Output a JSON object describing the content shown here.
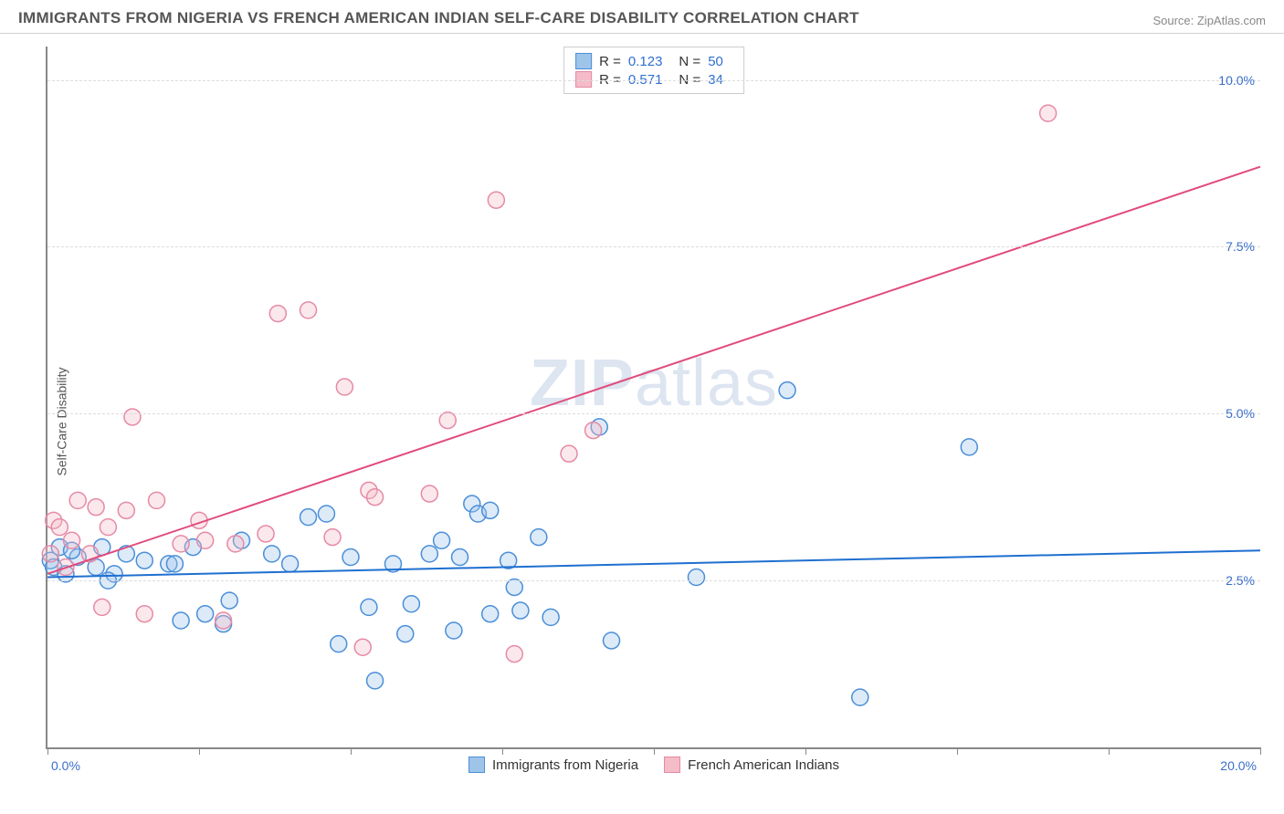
{
  "header": {
    "title": "IMMIGRANTS FROM NIGERIA VS FRENCH AMERICAN INDIAN SELF-CARE DISABILITY CORRELATION CHART",
    "source": "Source: ZipAtlas.com"
  },
  "ylabel": "Self-Care Disability",
  "watermark": {
    "bold": "ZIP",
    "rest": "atlas"
  },
  "chart": {
    "type": "scatter-with-regression",
    "xlim": [
      0,
      20
    ],
    "ylim": [
      0,
      10.5
    ],
    "x_ticks": [
      0,
      2.5,
      5,
      7.5,
      10,
      12.5,
      15,
      17.5,
      20
    ],
    "x_tick_labels_shown": {
      "min": "0.0%",
      "max": "20.0%"
    },
    "y_gridlines": [
      2.5,
      5.0,
      7.5,
      10.0
    ],
    "y_tick_labels": [
      "2.5%",
      "5.0%",
      "7.5%",
      "10.0%"
    ],
    "background_color": "#ffffff",
    "grid_color": "#dddddd",
    "axis_color": "#888888",
    "label_color": "#3b6fc9",
    "marker_radius": 9,
    "marker_stroke_width": 1.5,
    "marker_fill_opacity": 0.35,
    "line_width": 2
  },
  "series": [
    {
      "key": "nigeria",
      "label": "Immigrants from Nigeria",
      "color_stroke": "#4a8fd8",
      "color_fill": "#9fc4ea",
      "line_color": "#1f6fd0",
      "R": "0.123",
      "N": "50",
      "regression": {
        "x1": 0,
        "y1": 2.55,
        "x2": 20,
        "y2": 2.95
      },
      "points": [
        [
          0.05,
          2.8
        ],
        [
          0.1,
          2.7
        ],
        [
          0.2,
          3.0
        ],
        [
          0.3,
          2.6
        ],
        [
          0.5,
          2.85
        ],
        [
          0.8,
          2.7
        ],
        [
          0.9,
          3.0
        ],
        [
          1.1,
          2.6
        ],
        [
          1.3,
          2.9
        ],
        [
          1.6,
          2.8
        ],
        [
          2.0,
          2.75
        ],
        [
          2.2,
          1.9
        ],
        [
          2.4,
          3.0
        ],
        [
          2.6,
          2.0
        ],
        [
          2.9,
          1.85
        ],
        [
          3.0,
          2.2
        ],
        [
          3.2,
          3.1
        ],
        [
          3.7,
          2.9
        ],
        [
          4.0,
          2.75
        ],
        [
          4.3,
          3.45
        ],
        [
          4.6,
          3.5
        ],
        [
          4.8,
          1.55
        ],
        [
          5.0,
          2.85
        ],
        [
          5.3,
          2.1
        ],
        [
          5.4,
          1.0
        ],
        [
          5.7,
          2.75
        ],
        [
          5.9,
          1.7
        ],
        [
          6.0,
          2.15
        ],
        [
          6.3,
          2.9
        ],
        [
          6.5,
          3.1
        ],
        [
          6.7,
          1.75
        ],
        [
          6.8,
          2.85
        ],
        [
          7.0,
          3.65
        ],
        [
          7.1,
          3.5
        ],
        [
          7.3,
          2.0
        ],
        [
          7.3,
          3.55
        ],
        [
          7.6,
          2.8
        ],
        [
          7.7,
          2.4
        ],
        [
          7.8,
          2.05
        ],
        [
          8.1,
          3.15
        ],
        [
          8.3,
          1.95
        ],
        [
          9.1,
          4.8
        ],
        [
          9.3,
          1.6
        ],
        [
          10.7,
          2.55
        ],
        [
          12.2,
          5.35
        ],
        [
          13.4,
          0.75
        ],
        [
          15.2,
          4.5
        ],
        [
          0.4,
          2.95
        ],
        [
          1.0,
          2.5
        ],
        [
          2.1,
          2.75
        ]
      ]
    },
    {
      "key": "french",
      "label": "French American Indians",
      "color_stroke": "#e68aa5",
      "color_fill": "#f4bcc9",
      "line_color": "#e14b7b",
      "R": "0.571",
      "N": "34",
      "regression": {
        "x1": 0,
        "y1": 2.6,
        "x2": 20,
        "y2": 8.7
      },
      "points": [
        [
          0.05,
          2.9
        ],
        [
          0.1,
          3.4
        ],
        [
          0.2,
          3.3
        ],
        [
          0.3,
          2.7
        ],
        [
          0.4,
          3.1
        ],
        [
          0.5,
          3.7
        ],
        [
          0.7,
          2.9
        ],
        [
          0.8,
          3.6
        ],
        [
          0.9,
          2.1
        ],
        [
          1.0,
          3.3
        ],
        [
          1.3,
          3.55
        ],
        [
          1.4,
          4.95
        ],
        [
          1.6,
          2.0
        ],
        [
          1.8,
          3.7
        ],
        [
          2.2,
          3.05
        ],
        [
          2.5,
          3.4
        ],
        [
          2.6,
          3.1
        ],
        [
          2.9,
          1.9
        ],
        [
          3.1,
          3.05
        ],
        [
          3.6,
          3.2
        ],
        [
          3.8,
          6.5
        ],
        [
          4.3,
          6.55
        ],
        [
          4.7,
          3.15
        ],
        [
          4.9,
          5.4
        ],
        [
          5.2,
          1.5
        ],
        [
          5.3,
          3.85
        ],
        [
          5.4,
          3.75
        ],
        [
          6.3,
          3.8
        ],
        [
          6.6,
          4.9
        ],
        [
          7.4,
          8.2
        ],
        [
          7.7,
          1.4
        ],
        [
          8.6,
          4.4
        ],
        [
          9.0,
          4.75
        ],
        [
          16.5,
          9.5
        ]
      ]
    }
  ],
  "correlation_legend": {
    "r_label": "R =",
    "n_label": "N ="
  },
  "bottom_legend": {
    "items": [
      "Immigrants from Nigeria",
      "French American Indians"
    ]
  }
}
